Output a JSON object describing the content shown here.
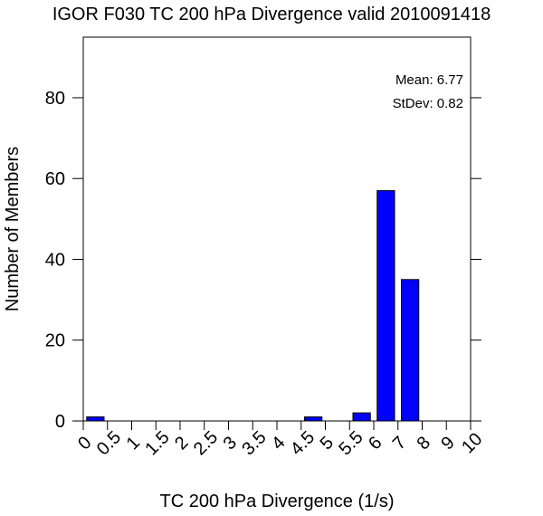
{
  "chart_data": {
    "type": "bar",
    "title": "IGOR F030 TC 200 hPa Divergence valid 2010091418",
    "xlabel": "TC 200 hPa Divergence (1/s)",
    "ylabel": "Number of Members",
    "xlim": [
      0,
      10
    ],
    "ylim": [
      0,
      95
    ],
    "x_ticks": [
      "0",
      "0.5",
      "1",
      "1.5",
      "2",
      "2.5",
      "3",
      "3.5",
      "4",
      "4.5",
      "5",
      "5.5",
      "6",
      "7",
      "8",
      "9",
      "10"
    ],
    "y_ticks": [
      0,
      20,
      40,
      60,
      80
    ],
    "bars": [
      {
        "bin": "0-0.5",
        "value": 1
      },
      {
        "bin": "0.5-1",
        "value": 0
      },
      {
        "bin": "1-1.5",
        "value": 0
      },
      {
        "bin": "1.5-2",
        "value": 0
      },
      {
        "bin": "2-2.5",
        "value": 0
      },
      {
        "bin": "2.5-3",
        "value": 0
      },
      {
        "bin": "3-3.5",
        "value": 0
      },
      {
        "bin": "3.5-4",
        "value": 0
      },
      {
        "bin": "4-4.5",
        "value": 0
      },
      {
        "bin": "4.5-5",
        "value": 1
      },
      {
        "bin": "5-5.5",
        "value": 0
      },
      {
        "bin": "5.5-6",
        "value": 2
      },
      {
        "bin": "6-7",
        "value": 57
      },
      {
        "bin": "7-8",
        "value": 35
      },
      {
        "bin": "8-9",
        "value": 0
      },
      {
        "bin": "9-10",
        "value": 0
      }
    ],
    "bar_color": "#0000ff",
    "grid": false,
    "stats": {
      "mean_text": "Mean: 6.77",
      "stdev_text": "StDev: 0.82"
    }
  }
}
